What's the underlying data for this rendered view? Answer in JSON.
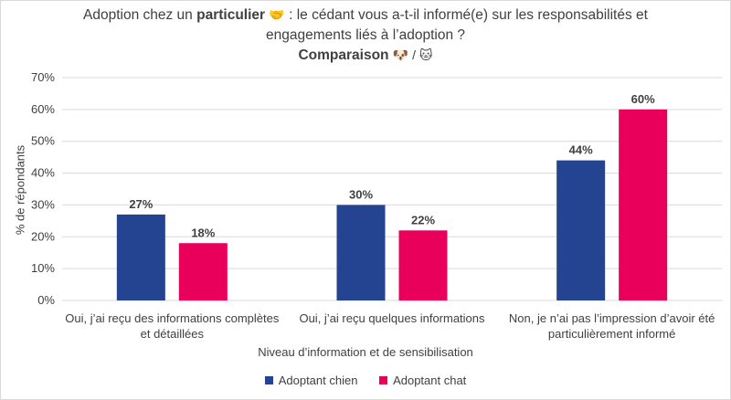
{
  "title": {
    "line1_prefix": "Adoption chez un ",
    "line1_bold": "particulier",
    "line1_emoji": "🤝",
    "line1_suffix": " : le cédant vous a-t-il informé(e) sur les responsabilités et",
    "line2": "engagements liés à l’adoption ?",
    "line3_bold": "Comparaison",
    "line3_emojis": "🐶 / 🐱"
  },
  "colors": {
    "chien": "#244390",
    "chat": "#E8005A",
    "grid": "#d9d9d9",
    "text": "#404040"
  },
  "chart_data": {
    "type": "bar",
    "categories": [
      "Oui, j’ai reçu des informations complètes et détaillées",
      "Oui, j’ai reçu quelques informations",
      "Non, je n’ai pas l’impression d’avoir été particulièrement informé"
    ],
    "category_lines": [
      [
        "Oui, j’ai reçu des informations complètes",
        "et détaillées"
      ],
      [
        "Oui, j’ai reçu quelques informations"
      ],
      [
        "Non, je n’ai pas l’impression d’avoir été",
        "particulièrement informé"
      ]
    ],
    "series": [
      {
        "name": "Adoptant chien",
        "values": [
          27,
          30,
          44
        ],
        "labels": [
          "27%",
          "30%",
          "44%"
        ]
      },
      {
        "name": "Adoptant chat",
        "values": [
          18,
          22,
          60
        ],
        "labels": [
          "18%",
          "22%",
          "60%"
        ]
      }
    ],
    "yticks": [
      "0%",
      "10%",
      "20%",
      "30%",
      "40%",
      "50%",
      "60%",
      "70%"
    ],
    "ylim": [
      0,
      70
    ],
    "xlabel": "Niveau d’information et de sensibilisation",
    "ylabel": "% de répondants",
    "grid": true,
    "legend_position": "bottom"
  }
}
